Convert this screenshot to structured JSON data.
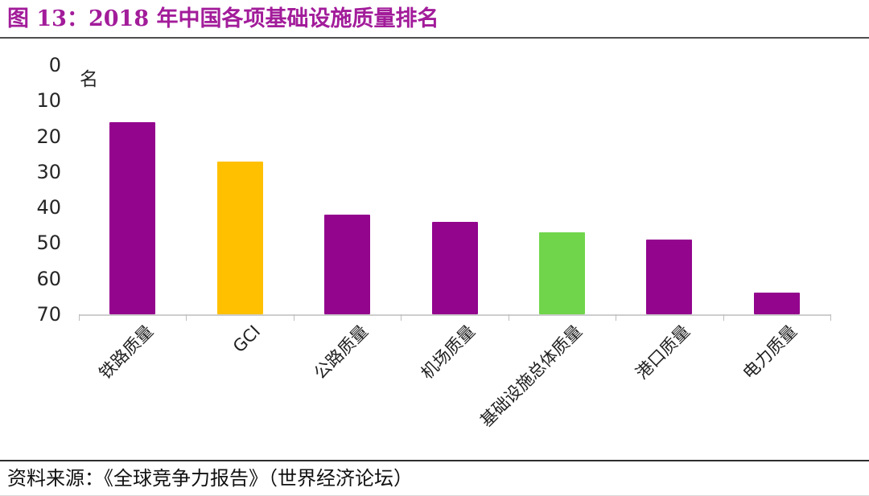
{
  "header": {
    "title": "图 13：2018 年中国各项基础设施质量排名"
  },
  "footer": {
    "source": "资料来源：《全球竞争力报告》（世界经济论坛）"
  },
  "chart_data": {
    "type": "bar",
    "title": "2018 年中国各项基础设施质量排名",
    "unit_label": "名",
    "categories": [
      "铁路质量",
      "GCI",
      "公路质量",
      "机场质量",
      "基础设施总体质量",
      "港口质量",
      "电力质量"
    ],
    "category_names": [
      "railway-quality",
      "gci",
      "road-quality",
      "airport-quality",
      "overall-infrastructure-quality",
      "port-quality",
      "electricity-quality"
    ],
    "values": [
      16,
      27,
      42,
      44,
      47,
      49,
      64
    ],
    "bar_colors": [
      "#93058D",
      "#FFC000",
      "#93058D",
      "#93058D",
      "#70D54B",
      "#93058D",
      "#93058D"
    ],
    "xlabel": "",
    "ylabel": "名",
    "yticks": [
      0,
      10,
      20,
      30,
      40,
      50,
      60,
      70
    ],
    "ylim": [
      0,
      70
    ],
    "y_axis_inverted": true,
    "x_labels_rotation_deg": 45,
    "grid": false,
    "legend": false
  },
  "colors": {
    "title_text": "#A21C9A",
    "bar_purple": "#93058D",
    "bar_yellow": "#FFC000",
    "bar_green": "#70D54B",
    "axis_line": "#CDCDCD",
    "label_text": "#262626",
    "top_divider": "#4F4F4F",
    "bottom_divider": "#2E2E2E"
  }
}
